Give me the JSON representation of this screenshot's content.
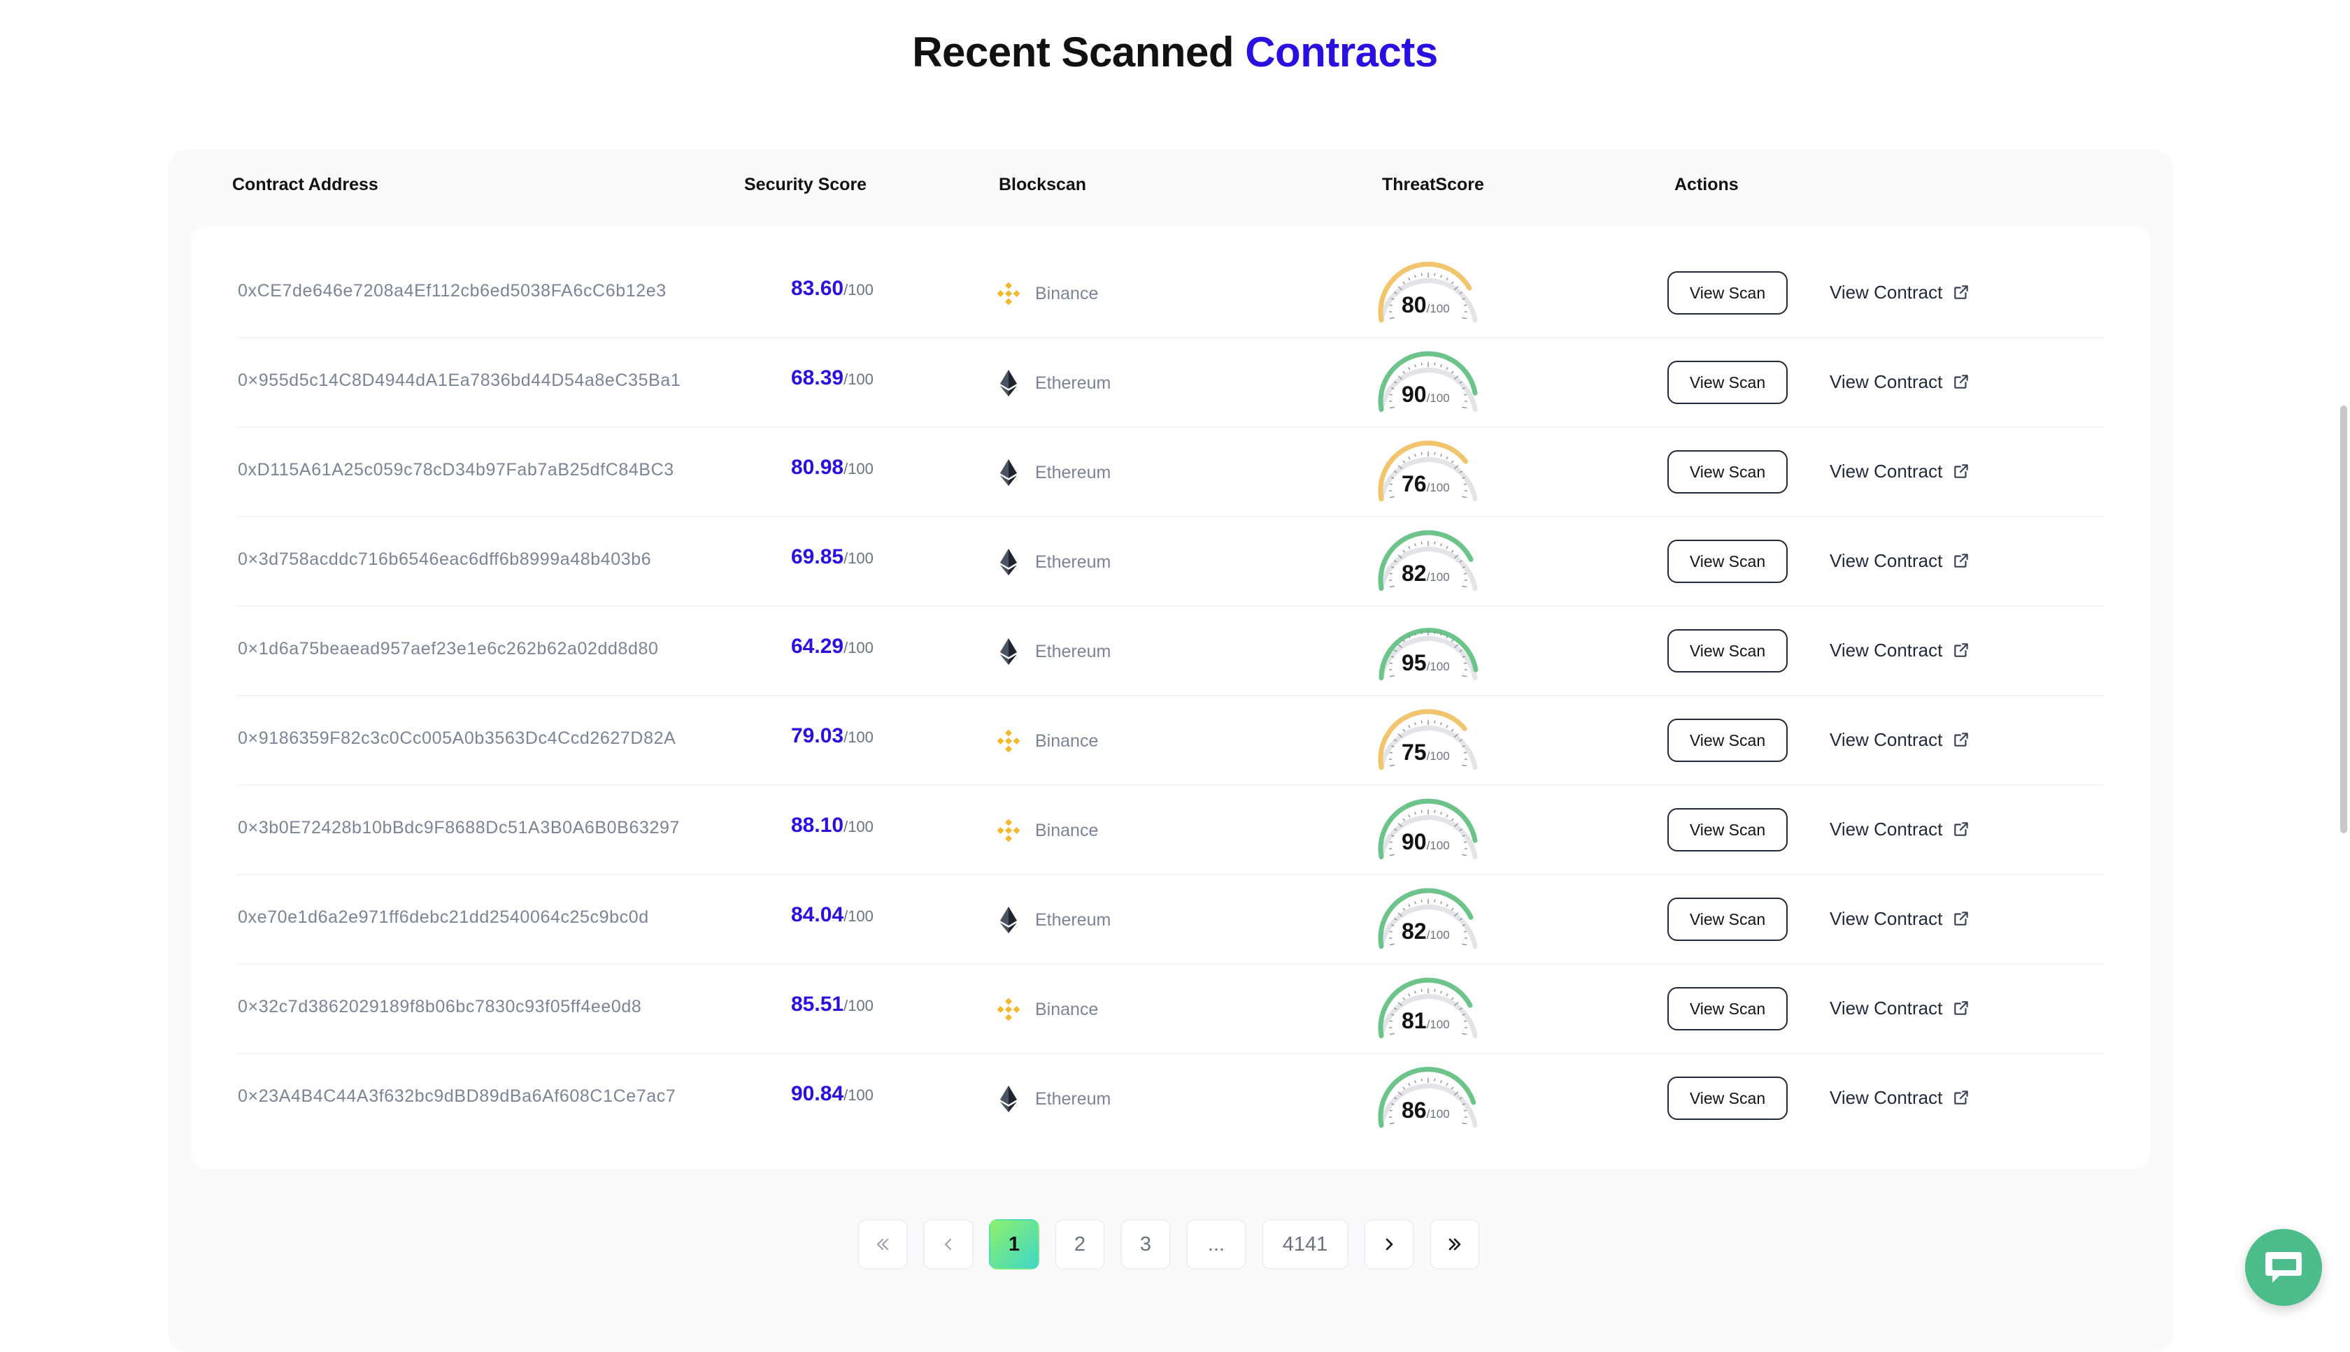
{
  "title": {
    "prefix": "Recent Scanned",
    "accent": "Contracts"
  },
  "table": {
    "headers": {
      "address": "Contract Address",
      "security": "Security Score",
      "blockscan": "Blockscan",
      "threat": "ThreatScore",
      "actions": "Actions"
    },
    "rows": [
      {
        "address": "0xCE7de646e7208a4Ef112cb6ed5038FA6cC6b12e3",
        "score": "83.60",
        "score_max": "/100",
        "chain": "Binance",
        "chain_icon": "binance-icon",
        "threat": "80",
        "threat_max": "/100",
        "threat_color": "#f2c46d"
      },
      {
        "address": "0×955d5c14C8D4944dA1Ea7836bd44D54a8eC35Ba1",
        "score": "68.39",
        "score_max": "/100",
        "chain": "Ethereum",
        "chain_icon": "ethereum-icon",
        "threat": "90",
        "threat_max": "/100",
        "threat_color": "#6cc48b"
      },
      {
        "address": "0xD115A61A25c059c78cD34b97Fab7aB25dfC84BC3",
        "score": "80.98",
        "score_max": "/100",
        "chain": "Ethereum",
        "chain_icon": "ethereum-icon",
        "threat": "76",
        "threat_max": "/100",
        "threat_color": "#f2c46d"
      },
      {
        "address": "0×3d758acddc716b6546eac6dff6b8999a48b403b6",
        "score": "69.85",
        "score_max": "/100",
        "chain": "Ethereum",
        "chain_icon": "ethereum-icon",
        "threat": "82",
        "threat_max": "/100",
        "threat_color": "#6cc48b"
      },
      {
        "address": "0×1d6a75beaead957aef23e1e6c262b62a02dd8d80",
        "score": "64.29",
        "score_max": "/100",
        "chain": "Ethereum",
        "chain_icon": "ethereum-icon",
        "threat": "95",
        "threat_max": "/100",
        "threat_color": "#6cc48b"
      },
      {
        "address": "0×9186359F82c3c0Cc005A0b3563Dc4Ccd2627D82A",
        "score": "79.03",
        "score_max": "/100",
        "chain": "Binance",
        "chain_icon": "binance-icon",
        "threat": "75",
        "threat_max": "/100",
        "threat_color": "#f2c46d"
      },
      {
        "address": "0×3b0E72428b10bBdc9F8688Dc51A3B0A6B0B63297",
        "score": "88.10",
        "score_max": "/100",
        "chain": "Binance",
        "chain_icon": "binance-icon",
        "threat": "90",
        "threat_max": "/100",
        "threat_color": "#6cc48b"
      },
      {
        "address": "0xe70e1d6a2e971ff6debc21dd2540064c25c9bc0d",
        "score": "84.04",
        "score_max": "/100",
        "chain": "Ethereum",
        "chain_icon": "ethereum-icon",
        "threat": "82",
        "threat_max": "/100",
        "threat_color": "#6cc48b"
      },
      {
        "address": "0×32c7d3862029189f8b06bc7830c93f05ff4ee0d8",
        "score": "85.51",
        "score_max": "/100",
        "chain": "Binance",
        "chain_icon": "binance-icon",
        "threat": "81",
        "threat_max": "/100",
        "threat_color": "#6cc48b"
      },
      {
        "address": "0×23A4B4C44A3f632bc9dBD89dBa6Af608C1Ce7ac7",
        "score": "90.84",
        "score_max": "/100",
        "chain": "Ethereum",
        "chain_icon": "ethereum-icon",
        "threat": "86",
        "threat_max": "/100",
        "threat_color": "#6cc48b"
      }
    ],
    "actions": {
      "view_scan": "View Scan",
      "view_contract": "View Contract",
      "external_icon": "external-link-icon"
    }
  },
  "pagination": {
    "pages": [
      "1",
      "2",
      "3",
      "...",
      "4141"
    ],
    "current": "1",
    "first_icon": "double-chevron-left-icon",
    "prev_icon": "chevron-left-icon",
    "next_icon": "chevron-right-icon",
    "last_icon": "double-chevron-right-icon"
  },
  "colors": {
    "accent": "#2a10e0",
    "binance": "#f3ba2f",
    "gauge_track": "#e2e4e8",
    "chat": "#4cbd8a"
  },
  "chat": {
    "icon": "chat-bubble-icon"
  }
}
